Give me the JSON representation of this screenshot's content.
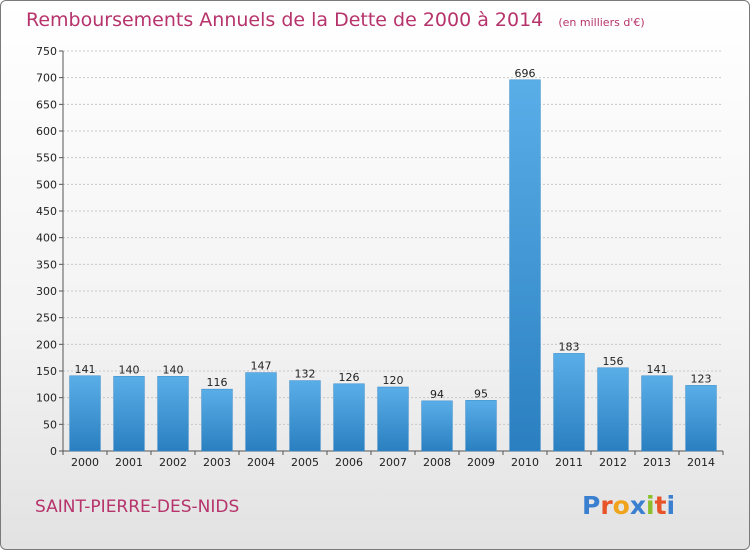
{
  "chart_data": {
    "type": "bar",
    "title": "Remboursements Annuels de la Dette de 2000 à 2014",
    "subtitle": "(en milliers d'€)",
    "categories": [
      "2000",
      "2001",
      "2002",
      "2003",
      "2004",
      "2005",
      "2006",
      "2007",
      "2008",
      "2009",
      "2010",
      "2011",
      "2012",
      "2013",
      "2014"
    ],
    "values": [
      141,
      140,
      140,
      116,
      147,
      132,
      126,
      120,
      94,
      95,
      696,
      183,
      156,
      141,
      123
    ],
    "ylim": [
      0,
      750
    ],
    "yticks": [
      0,
      50,
      100,
      150,
      200,
      250,
      300,
      350,
      400,
      450,
      500,
      550,
      600,
      650,
      700,
      750
    ],
    "grid": true,
    "bar_color_top": "#5aaee8",
    "bar_color_bottom": "#2a7fc0"
  },
  "commune": "SAINT-PIERRE-DES-NIDS",
  "logo": {
    "letters": [
      "P",
      "r",
      "o",
      "x",
      "i",
      "t",
      "i"
    ],
    "colors": [
      "#3a7fd0",
      "#e8542a",
      "#f0a31c",
      "#3a7fd0",
      "#8bbf2c",
      "#e8542a",
      "#3a7fd0"
    ]
  }
}
